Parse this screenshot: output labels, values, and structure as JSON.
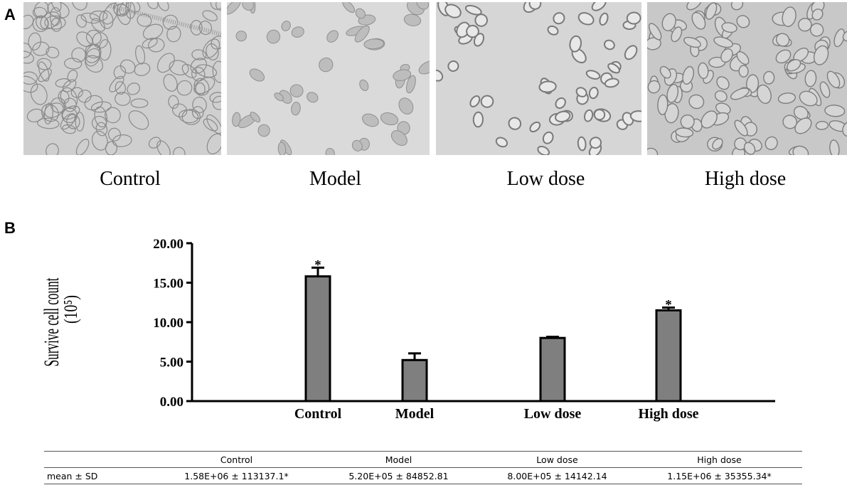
{
  "panels": {
    "a": "A",
    "b": "B"
  },
  "images": {
    "captions": [
      "Control",
      "Model",
      "Low dose",
      "High dose"
    ]
  },
  "chart_data": {
    "type": "bar",
    "categories": [
      "Control",
      "Model",
      "Low dose",
      "High dose"
    ],
    "values": [
      15.8,
      5.2,
      8.0,
      11.5
    ],
    "errors": [
      1.1,
      0.85,
      0.14,
      0.35
    ],
    "significance": [
      "*",
      "",
      "",
      "*"
    ],
    "ylabel_line1": "Survive cell count",
    "ylabel_line2": "(10⁵)",
    "yticks": [
      "0.00",
      "5.00",
      "10.00",
      "15.00",
      "20.00"
    ],
    "ylim": [
      0,
      20
    ],
    "bar_color": "#7f7f7f",
    "grid": false
  },
  "table": {
    "headers": [
      "",
      "Control",
      "Model",
      "Low dose",
      "High dose"
    ],
    "rows": [
      [
        "mean ± SD",
        "1.58E+06 ± 113137.1*",
        "5.20E+05 ± 84852.81",
        "8.00E+05 ± 14142.14",
        "1.15E+06 ± 35355.34*"
      ]
    ]
  }
}
